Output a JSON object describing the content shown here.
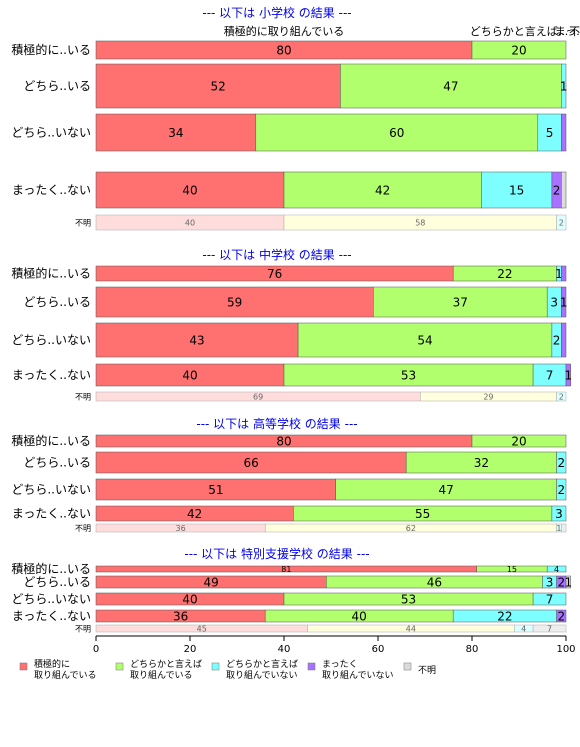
{
  "chart_data": {
    "type": "bar",
    "orientation": "horizontal",
    "stacked": true,
    "xlim": [
      0,
      100
    ],
    "x_ticks": [
      0,
      20,
      40,
      60,
      80,
      100
    ],
    "grid": false,
    "legend_position": "bottom",
    "series": [
      {
        "name": "積極的に\n取り組んでいる",
        "color": "#FF7070"
      },
      {
        "name": "どちらかと言えば\n取り組んでいる",
        "color": "#B2FF6E"
      },
      {
        "name": "どちらかと言えば\n取り組んでいない",
        "color": "#7EFFFF"
      },
      {
        "name": "まったく\n取り組んでいない",
        "color": "#A971FF"
      },
      {
        "name": "不明",
        "color": "#DCDCDC"
      }
    ],
    "unknown_colors": [
      "#FFDDDD",
      "#FFFFDD",
      "#DDFFFF",
      "#EEDDFF",
      "#EEEEEE"
    ],
    "panels": [
      {
        "title": "--- 以下は 小学校 の結果 ---",
        "column_labels": [
          "積極的に取り組んでいる",
          "どちらかと言えば...",
          "まっ...",
          "不明"
        ],
        "rows": [
          {
            "label": "積極的に..いる",
            "values": [
              80,
              20,
              0,
              0,
              0
            ],
            "labels": [
              "80",
              "20",
              "",
              "",
              ""
            ]
          },
          {
            "label": "どちら..いる",
            "values": [
              52,
              47,
              1,
              0,
              0
            ],
            "labels": [
              "52",
              "47",
              "1",
              "",
              ""
            ]
          },
          {
            "label": "どちら..いない",
            "values": [
              34,
              60,
              5,
              1,
              0
            ],
            "labels": [
              "34",
              "60",
              "5",
              "",
              ""
            ]
          },
          {
            "label": "まったく..ない",
            "values": [
              40,
              42,
              15,
              2,
              1
            ],
            "labels": [
              "40",
              "42",
              "15",
              "2",
              ""
            ]
          },
          {
            "label": "不明",
            "values": [
              40,
              58,
              2,
              0,
              0
            ],
            "labels": [
              "40",
              "58",
              "2",
              "",
              ""
            ],
            "unknown": true
          }
        ]
      },
      {
        "title": "--- 以下は 中学校 の結果 ---",
        "rows": [
          {
            "label": "積極的に..いる",
            "values": [
              76,
              22,
              1,
              1,
              0
            ],
            "labels": [
              "76",
              "22",
              "1",
              "",
              ""
            ]
          },
          {
            "label": "どちら..いる",
            "values": [
              59,
              37,
              3,
              1,
              0
            ],
            "labels": [
              "59",
              "37",
              "3",
              "1",
              ""
            ]
          },
          {
            "label": "どちら..いない",
            "values": [
              43,
              54,
              2,
              1,
              0
            ],
            "labels": [
              "43",
              "54",
              "2",
              "",
              ""
            ]
          },
          {
            "label": "まったく..ない",
            "values": [
              40,
              53,
              7,
              1,
              0
            ],
            "labels": [
              "40",
              "53",
              "7",
              "1",
              ""
            ]
          },
          {
            "label": "不明",
            "values": [
              69,
              29,
              2,
              0,
              0
            ],
            "labels": [
              "69",
              "29",
              "2",
              "",
              ""
            ],
            "unknown": true
          }
        ]
      },
      {
        "title": "--- 以下は 高等学校 の結果 ---",
        "rows": [
          {
            "label": "積極的に..いる",
            "values": [
              80,
              20,
              0,
              0,
              0
            ],
            "labels": [
              "80",
              "20",
              "",
              "",
              ""
            ]
          },
          {
            "label": "どちら..いる",
            "values": [
              66,
              32,
              2,
              0,
              0
            ],
            "labels": [
              "66",
              "32",
              "2",
              "",
              ""
            ]
          },
          {
            "label": "どちら..いない",
            "values": [
              51,
              47,
              2,
              0,
              0
            ],
            "labels": [
              "51",
              "47",
              "2",
              "",
              ""
            ]
          },
          {
            "label": "まったく..ない",
            "values": [
              42,
              55,
              3,
              0,
              0
            ],
            "labels": [
              "42",
              "55",
              "3",
              "",
              ""
            ]
          },
          {
            "label": "不明",
            "values": [
              36,
              62,
              1,
              0,
              1
            ],
            "labels": [
              "36",
              "62",
              "1",
              "",
              ""
            ],
            "unknown": true
          }
        ]
      },
      {
        "title": "--- 以下は 特別支援学校 の結果 ---",
        "rows": [
          {
            "label": "積極的に..いる",
            "values": [
              81,
              15,
              4,
              0,
              0
            ],
            "labels": [
              "81",
              "15",
              "4",
              "",
              ""
            ]
          },
          {
            "label": "どちら..いる",
            "values": [
              49,
              46,
              3,
              2,
              1
            ],
            "labels": [
              "49",
              "46",
              "3",
              "2",
              "1"
            ]
          },
          {
            "label": "どちら..いない",
            "values": [
              40,
              53,
              7,
              0,
              0
            ],
            "labels": [
              "40",
              "53",
              "7",
              "",
              ""
            ]
          },
          {
            "label": "まったく..ない",
            "values": [
              36,
              40,
              22,
              2,
              0
            ],
            "labels": [
              "36",
              "40",
              "22",
              "2",
              ""
            ]
          },
          {
            "label": "不明",
            "values": [
              45,
              44,
              4,
              0,
              7
            ],
            "labels": [
              "45",
              "44",
              "4",
              "",
              "7"
            ],
            "unknown": true
          }
        ]
      }
    ]
  }
}
